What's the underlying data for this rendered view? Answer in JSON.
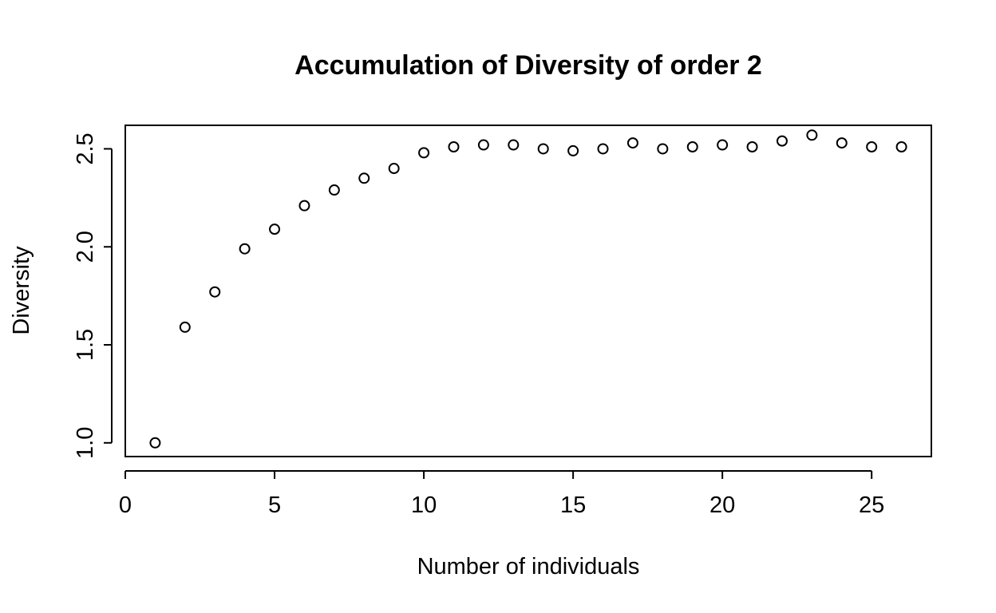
{
  "chart_data": {
    "type": "scatter",
    "title": "Accumulation of Diversity of order 2",
    "xlabel": "Number of individuals",
    "ylabel": "Diversity",
    "xlim": [
      0,
      27
    ],
    "ylim": [
      0.93,
      2.62
    ],
    "xticks": [
      0,
      5,
      10,
      15,
      20,
      25
    ],
    "yticks": [
      1.0,
      1.5,
      2.0,
      2.5
    ],
    "xtick_labels": [
      "0",
      "5",
      "10",
      "15",
      "20",
      "25"
    ],
    "ytick_labels": [
      "1.0",
      "1.5",
      "2.0",
      "2.5"
    ],
    "marker": "open-circle",
    "grid": false,
    "x": [
      1,
      2,
      3,
      4,
      5,
      6,
      7,
      8,
      9,
      10,
      11,
      12,
      13,
      14,
      15,
      16,
      17,
      18,
      19,
      20,
      21,
      22,
      23,
      24,
      25,
      26
    ],
    "y": [
      1.0,
      1.59,
      1.77,
      1.99,
      2.09,
      2.21,
      2.29,
      2.35,
      2.4,
      2.48,
      2.51,
      2.52,
      2.52,
      2.5,
      2.49,
      2.5,
      2.53,
      2.5,
      2.51,
      2.52,
      2.51,
      2.54,
      2.57,
      2.53,
      2.51,
      2.51
    ]
  }
}
